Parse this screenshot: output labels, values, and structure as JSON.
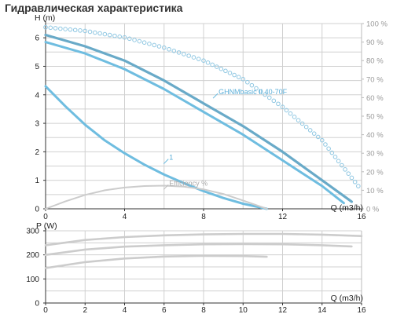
{
  "page_title": "Гидравлическая характеристика",
  "colors": {
    "curve_main": "#69aac8",
    "curve_light": "#6fbde0",
    "efficiency": "#cccccc",
    "efficiency_dots": "#8fc7e2",
    "power": "#cccccc",
    "grid": "#d0d0d0",
    "axis": "#333333"
  },
  "chart_data": [
    {
      "type": "line",
      "title": "",
      "xlabel": "Q (m3/h)",
      "ylabel": "H (m)",
      "y2label": "",
      "xlim": [
        0,
        16
      ],
      "ylim": [
        0,
        6.5
      ],
      "y2lim": [
        0,
        100
      ],
      "x_ticks": [
        "0",
        "4",
        "8",
        "12",
        "16"
      ],
      "y_ticks": [
        "0",
        "1",
        "2",
        "3",
        "4",
        "5",
        "6"
      ],
      "y2_ticks": [
        "0 %",
        "10 %",
        "20 %",
        "30 %",
        "40 %",
        "50 %",
        "60 %",
        "70 %",
        "80 %",
        "90 %",
        "100 %"
      ],
      "grid": true,
      "series": [
        {
          "name": "GHNMbasic II 40-70F",
          "axis": "left",
          "style": "solid-dark",
          "x": [
            0,
            2,
            4,
            6,
            8,
            10,
            12,
            14,
            15.5
          ],
          "y": [
            6.1,
            5.7,
            5.2,
            4.5,
            3.7,
            2.9,
            2.0,
            1.0,
            0.25
          ]
        },
        {
          "name": "",
          "axis": "left",
          "style": "solid-light",
          "x": [
            0,
            2,
            4,
            6,
            8,
            10,
            12,
            14,
            15.1
          ],
          "y": [
            5.85,
            5.45,
            4.9,
            4.2,
            3.4,
            2.6,
            1.7,
            0.8,
            0.2
          ]
        },
        {
          "name": "1",
          "axis": "left",
          "style": "solid-light",
          "x": [
            0,
            1,
            2,
            3,
            4,
            5,
            6,
            7,
            8,
            9,
            10,
            11.2
          ],
          "y": [
            4.3,
            3.6,
            2.95,
            2.4,
            1.95,
            1.55,
            1.2,
            0.9,
            0.62,
            0.38,
            0.18,
            0.0
          ]
        },
        {
          "name": "Efficiency %",
          "axis": "right",
          "style": "solid-grey",
          "x": [
            0,
            1,
            2,
            3,
            4,
            5,
            6,
            7,
            8,
            9,
            10,
            11.2
          ],
          "y": [
            0,
            4,
            7.5,
            10,
            11.5,
            12.3,
            12.5,
            12,
            10.5,
            8,
            4.5,
            0
          ]
        },
        {
          "name": "",
          "axis": "right",
          "style": "dotted",
          "x": [
            0,
            2,
            4,
            6,
            8,
            10,
            12,
            14,
            16
          ],
          "y": [
            98,
            96,
            92.5,
            87,
            80,
            70,
            55,
            37,
            10
          ]
        }
      ],
      "annotations": [
        {
          "text": "GHNMbasic II 40-70F",
          "x": 8.6,
          "y": 4.1
        },
        {
          "text": "1",
          "x": 6.1,
          "y": 1.8
        },
        {
          "text": "Efficiency %",
          "x": 6.1,
          "y": 0.9
        }
      ]
    },
    {
      "type": "line",
      "title": "",
      "xlabel": "Q (m3/h)",
      "ylabel": "P (W)",
      "xlim": [
        0,
        16
      ],
      "ylim": [
        0,
        300
      ],
      "x_ticks": [
        "0",
        "2",
        "4",
        "6",
        "8",
        "10",
        "12",
        "14",
        "16"
      ],
      "y_ticks": [
        "0",
        "100",
        "200",
        "300"
      ],
      "grid": true,
      "series": [
        {
          "name": "",
          "x": [
            0,
            2,
            4,
            6,
            8,
            10,
            12,
            14,
            16
          ],
          "y": [
            240,
            262,
            274,
            281,
            285,
            287,
            287,
            284,
            278
          ]
        },
        {
          "name": "",
          "x": [
            0,
            2,
            4,
            6,
            8,
            10,
            12,
            14,
            15.5
          ],
          "y": [
            200,
            222,
            234,
            240,
            244,
            245,
            244,
            240,
            235
          ]
        },
        {
          "name": "",
          "x": [
            0,
            2,
            4,
            6,
            8,
            10,
            11.2
          ],
          "y": [
            145,
            170,
            185,
            193,
            196,
            195,
            192
          ]
        }
      ]
    }
  ]
}
